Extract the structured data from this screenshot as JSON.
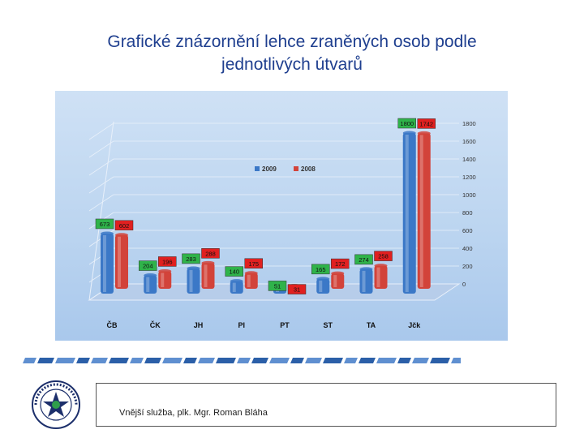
{
  "slide": {
    "title_line1": "Grafické znázornění lehce zraněných osob podle",
    "title_line2": "jednotlivých útvarů",
    "footer": "Vnější služba,  plk. Mgr. Roman Bláha",
    "logo_text_top": "POLICIE",
    "logo_text_bottom": "ČESKÉ REPUBLIKY"
  },
  "colors": {
    "series_2009": "#3b78c7",
    "series_2008": "#d2433a",
    "label_2009_bg": "#2fb34a",
    "label_2008_bg": "#e02020",
    "title": "#1f3f8f"
  },
  "chart_data": {
    "type": "bar",
    "categories": [
      "ČB",
      "ČK",
      "JH",
      "PI",
      "PT",
      "ST",
      "TA",
      "Jčk"
    ],
    "series": [
      {
        "name": "2009",
        "values": [
          673,
          204,
          283,
          140,
          51,
          165,
          274,
          1800
        ]
      },
      {
        "name": "2008",
        "values": [
          602,
          196,
          288,
          175,
          31,
          172,
          258,
          1742
        ]
      }
    ],
    "ylim": [
      0,
      1800
    ],
    "yticks": [
      0,
      200,
      400,
      600,
      800,
      1000,
      1200,
      1400,
      1600,
      1800
    ],
    "legend_position": "top-center",
    "grid": true
  }
}
